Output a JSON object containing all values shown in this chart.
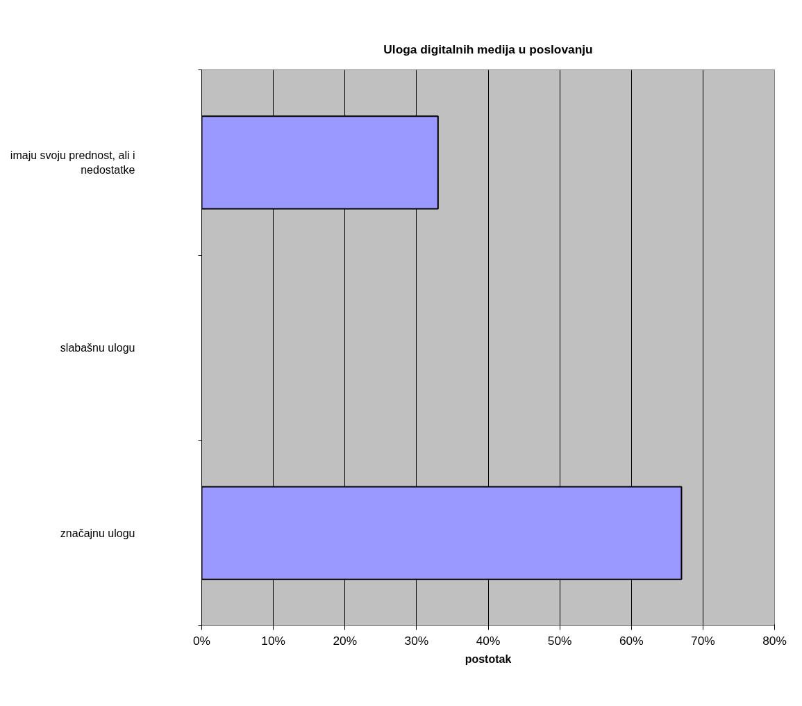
{
  "chart_data": {
    "type": "bar",
    "orientation": "horizontal",
    "title": "Uloga digitalnih medija u poslovanju",
    "xlabel": "postotak",
    "categories": [
      "imaju svoju prednost, ali i nedostatke",
      "slabašnu ulogu",
      "značajnu ulogu"
    ],
    "values": [
      33,
      0,
      67
    ],
    "color": "#9999ff",
    "xlim": [
      0,
      80
    ],
    "xticks": [
      {
        "value": 0,
        "label": "0%"
      },
      {
        "value": 10,
        "label": "10%"
      },
      {
        "value": 20,
        "label": "20%"
      },
      {
        "value": 30,
        "label": "30%"
      },
      {
        "value": 40,
        "label": "40%"
      },
      {
        "value": 50,
        "label": "50%"
      },
      {
        "value": 60,
        "label": "60%"
      },
      {
        "value": 70,
        "label": "70%"
      },
      {
        "value": 80,
        "label": "80%"
      }
    ],
    "grid": "x"
  }
}
